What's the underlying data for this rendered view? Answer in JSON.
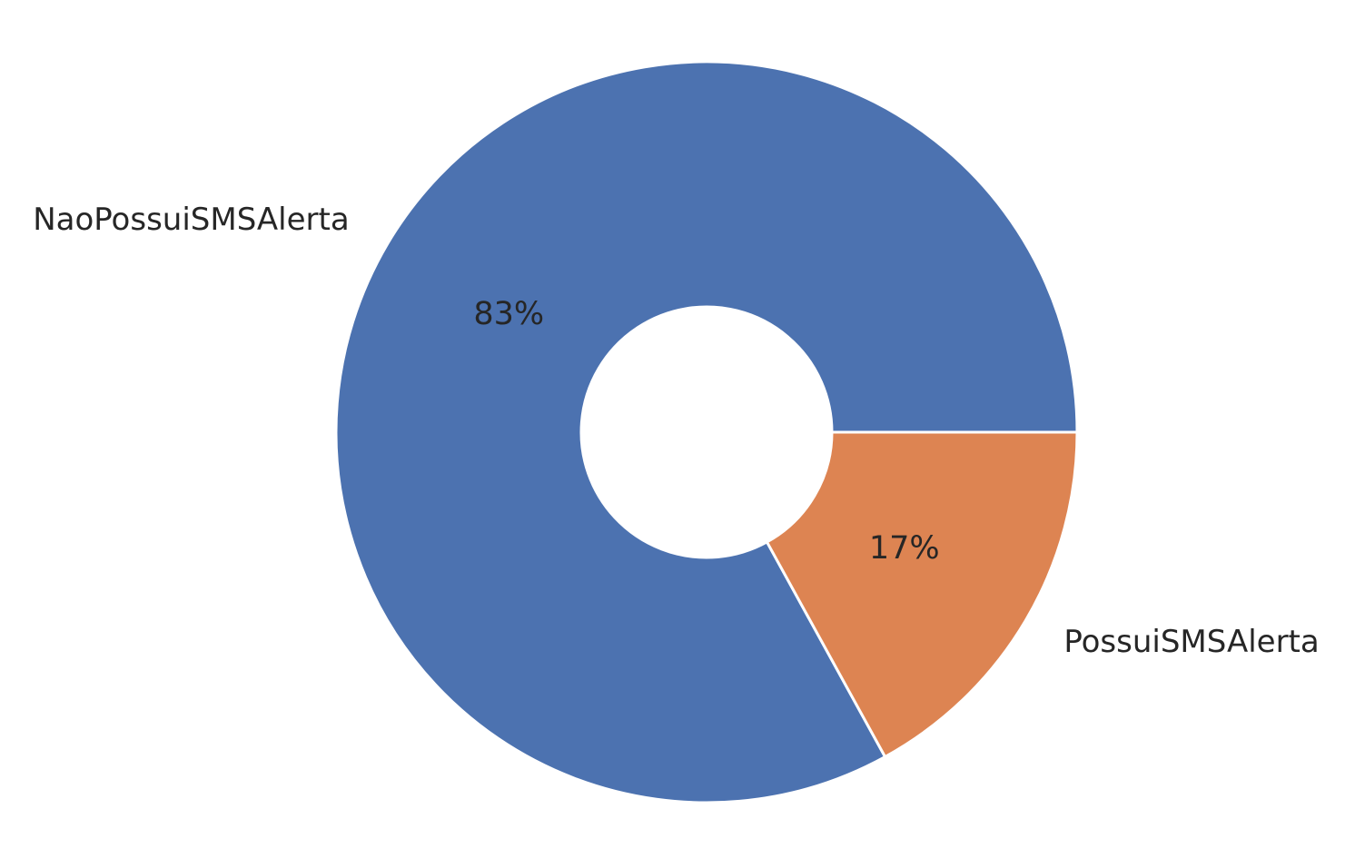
{
  "chart_data": {
    "type": "pie",
    "style": "donut",
    "categories": [
      "NaoPossuiSMSAlerta",
      "PossuiSMSAlerta"
    ],
    "values": [
      83,
      17
    ],
    "value_labels": [
      "83%",
      "17%"
    ],
    "colors": [
      "#4c72b0",
      "#dd8452"
    ],
    "start": "right, counterclockwise",
    "legend": "none",
    "grid": false
  }
}
